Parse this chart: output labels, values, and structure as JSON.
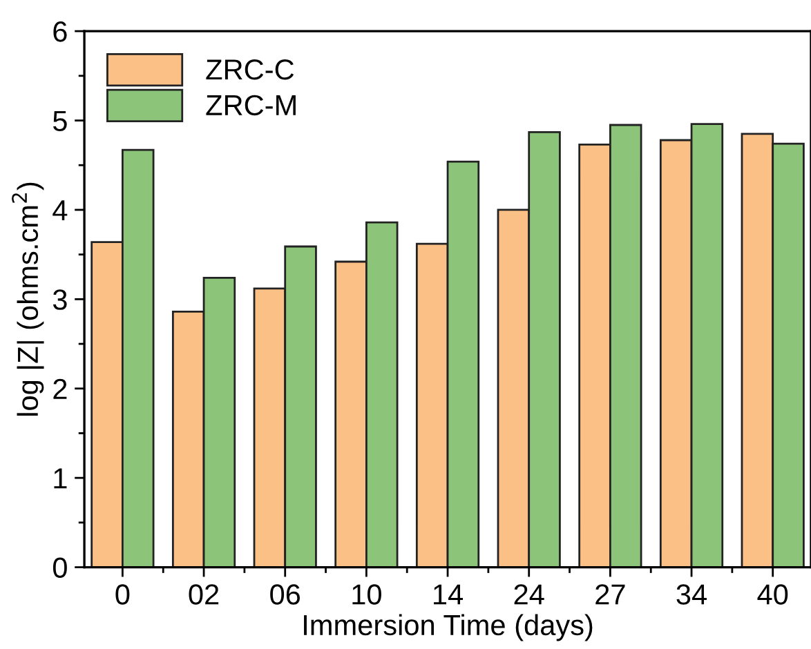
{
  "chart_data": {
    "type": "bar",
    "xlabel": "Immersion Time (days)",
    "ylabel": "log |Z| (ohms.cm$^{2}$)",
    "categories": [
      "0",
      "02",
      "06",
      "10",
      "14",
      "24",
      "27",
      "34",
      "40"
    ],
    "series": [
      {
        "name": "ZRC-C",
        "color": "#fbc086",
        "values": [
          3.64,
          2.86,
          3.12,
          3.42,
          3.62,
          4.0,
          4.73,
          4.78,
          4.85
        ]
      },
      {
        "name": "ZRC-M",
        "color": "#8cc47a",
        "values": [
          4.67,
          3.24,
          3.59,
          3.86,
          4.54,
          4.87,
          4.95,
          4.96,
          4.74
        ]
      }
    ],
    "ylim": [
      0,
      6
    ],
    "yticks": [
      0,
      1,
      2,
      3,
      4,
      5,
      6
    ],
    "grid": false,
    "legend": "top left"
  }
}
